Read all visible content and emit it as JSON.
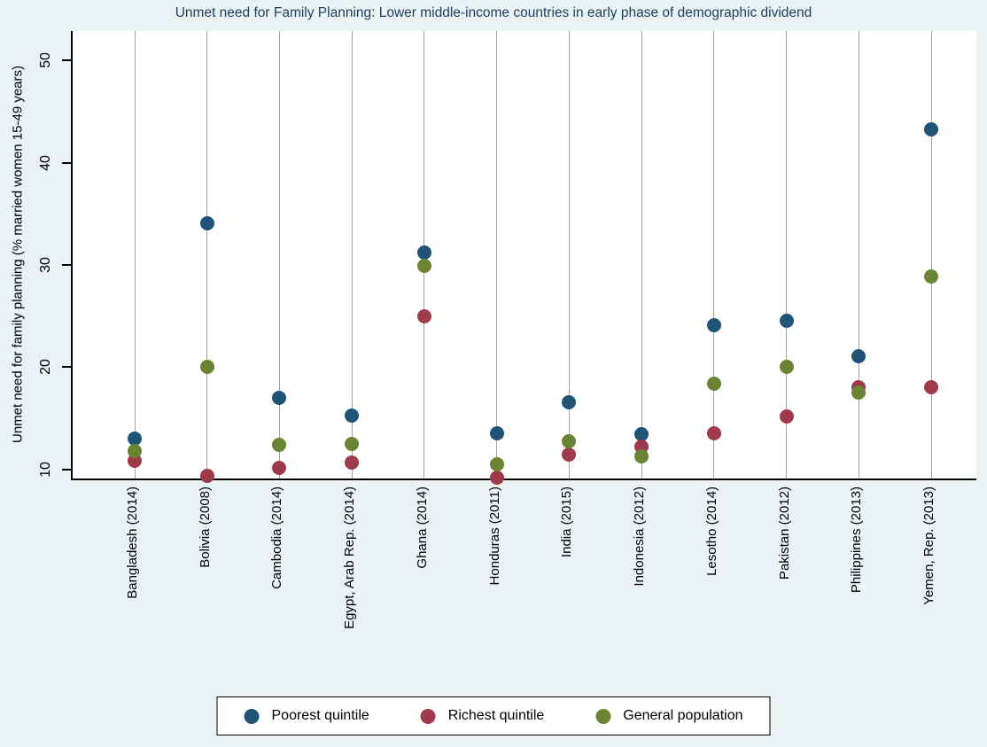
{
  "chart_data": {
    "type": "scatter",
    "title": "Unmet need for Family Planning: Lower middle-income countries in early phase of demographic dividend",
    "xlabel": "",
    "ylabel": "Unmet need for family planning (% married women 15-49 years)",
    "categories": [
      "Bangladesh (2014)",
      "Bolivia (2008)",
      "Cambodia (2014)",
      "Egypt, Arab Rep. (2014)",
      "Ghana (2014)",
      "Honduras (2011)",
      "India (2015)",
      "Indonesia (2012)",
      "Lesotho (2014)",
      "Pakistan (2012)",
      "Philippines (2013)",
      "Yemen, Rep. (2013)"
    ],
    "series": [
      {
        "name": "Poorest quintile",
        "color": "#1f5377",
        "values": [
          13.0,
          34.1,
          17.0,
          15.3,
          31.2,
          13.5,
          16.6,
          13.4,
          24.1,
          24.5,
          21.1,
          43.3
        ]
      },
      {
        "name": "Richest quintile",
        "color": "#9e3a49",
        "values": [
          10.8,
          9.4,
          10.1,
          10.7,
          25.0,
          9.2,
          11.4,
          12.2,
          13.5,
          15.2,
          18.0,
          18.0
        ]
      },
      {
        "name": "General population",
        "color": "#698433",
        "values": [
          11.8,
          20.0,
          12.4,
          12.5,
          29.9,
          10.5,
          12.7,
          11.3,
          18.4,
          20.0,
          17.5,
          28.9
        ]
      }
    ],
    "y_ticks": [
      10,
      20,
      30,
      40,
      50
    ],
    "ylim": [
      9.1,
      52.9
    ],
    "grid": "vertical-only",
    "legend_position": "bottom-center"
  },
  "colors": {
    "background": "#eaf2f3",
    "plot_background": "#ffffff",
    "gridline": "#a3a3a3",
    "axis": "#000000",
    "title": "#1e3e5c"
  }
}
